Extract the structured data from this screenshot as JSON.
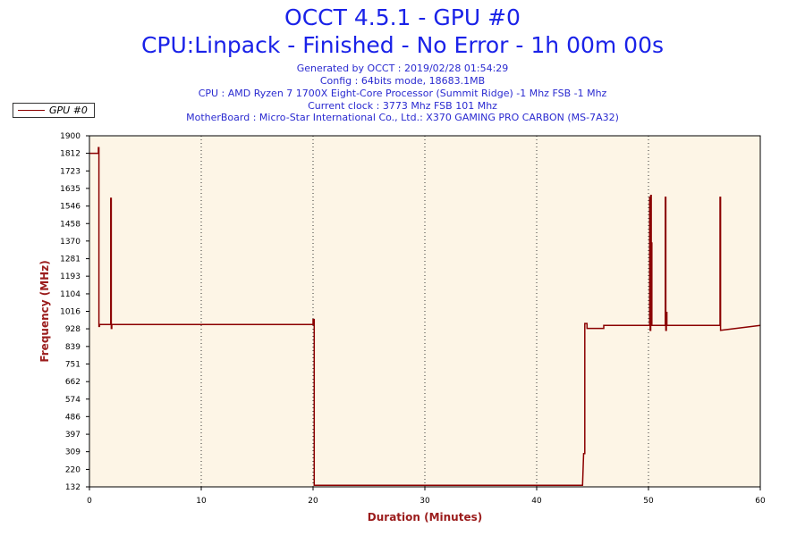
{
  "header": {
    "title": "OCCT 4.5.1 - GPU #0",
    "subtitle": "CPU:Linpack - Finished - No Error - 1h 00m 00s",
    "info_lines": [
      "Generated by OCCT : 2019/02/28 01:54:29",
      "Config : 64bits mode, 18683.1MB",
      "CPU : AMD Ryzen 7 1700X Eight-Core Processor (Summit Ridge) -1 Mhz FSB -1 Mhz",
      "Current clock : 3773 Mhz FSB 101 Mhz",
      "MotherBoard : Micro-Star International Co., Ltd.: X370 GAMING PRO CARBON (MS-7A32)"
    ]
  },
  "legend": {
    "label": "GPU #0",
    "color": "#8b0000"
  },
  "chart_data": {
    "type": "line",
    "title": "OCCT 4.5.1 - GPU #0",
    "xlabel": "Duration (Minutes)",
    "ylabel": "Frequency (MHz)",
    "xlim": [
      0,
      60
    ],
    "ylim": [
      132,
      1900
    ],
    "x_ticks": [
      0,
      10,
      20,
      30,
      40,
      50,
      60
    ],
    "y_ticks": [
      132,
      220,
      309,
      397,
      486,
      574,
      662,
      751,
      839,
      928,
      1016,
      1104,
      1193,
      1281,
      1370,
      1458,
      1546,
      1635,
      1723,
      1812,
      1900
    ],
    "grid": "vertical dotted",
    "legend_position": "top-left",
    "plot_background": "#fdf5e6",
    "series": [
      {
        "name": "GPU #0",
        "color": "#8b0000",
        "x": [
          0.0,
          0.3,
          0.3,
          0.8,
          0.8,
          0.85,
          0.85,
          0.9,
          0.9,
          1.9,
          1.9,
          1.95,
          1.95,
          2.0,
          2.0,
          20.0,
          20.0,
          20.1,
          20.1,
          44.1,
          44.2,
          44.3,
          44.3,
          44.5,
          44.5,
          46.0,
          46.0,
          50.1,
          50.1,
          50.15,
          50.15,
          50.2,
          50.2,
          50.25,
          50.25,
          50.3,
          50.3,
          51.5,
          51.5,
          51.55,
          51.55,
          51.6,
          51.6,
          51.65,
          51.65,
          56.4,
          56.4,
          56.45,
          56.45,
          60.0
        ],
        "y": [
          1812,
          1812,
          1812,
          1812,
          1840,
          1840,
          940,
          940,
          950,
          950,
          1585,
          1585,
          930,
          930,
          950,
          950,
          975,
          975,
          140,
          140,
          300,
          300,
          955,
          955,
          930,
          930,
          945,
          945,
          1590,
          1590,
          920,
          920,
          1600,
          1600,
          1360,
          1360,
          945,
          945,
          1590,
          1590,
          920,
          920,
          1010,
          1010,
          945,
          945,
          1590,
          1590,
          920,
          945
        ]
      }
    ]
  }
}
